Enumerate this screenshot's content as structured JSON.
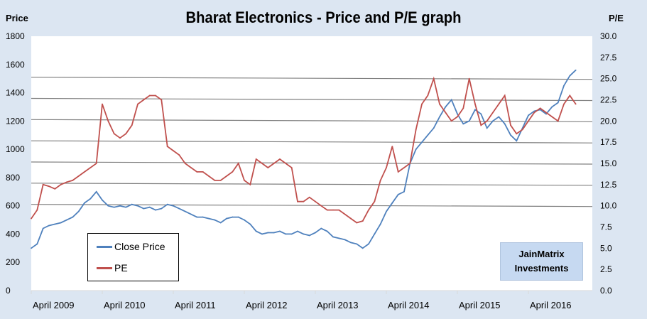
{
  "chart_data": {
    "type": "line",
    "title": "Bharat Electronics - Price and P/E graph",
    "ylabel": "Price",
    "y2label": "P/E",
    "ylim": [
      0,
      1800
    ],
    "y2lim": [
      0,
      30
    ],
    "yticks": [
      "0",
      "200",
      "400",
      "600",
      "800",
      "1000",
      "1200",
      "1400",
      "1600",
      "1800"
    ],
    "y2ticks": [
      "0.0",
      "2.5",
      "5.0",
      "7.5",
      "10.0",
      "12.5",
      "15.0",
      "17.5",
      "20.0",
      "22.5",
      "25.0",
      "27.5",
      "30.0"
    ],
    "xticks": [
      "April 2009",
      "April 2010",
      "April 2011",
      "April 2012",
      "April 2013",
      "April 2014",
      "April 2015",
      "April 2016"
    ],
    "grid": "horizontal lines at P/E 10.0-25.0",
    "legend": "bottom-left",
    "colors": {
      "Close Price": "#4f81bd",
      "PE": "#c0504d"
    },
    "start": "2009-04",
    "interval": "monthly",
    "series": [
      {
        "name": "Close Price",
        "axis": "left",
        "values": [
          300,
          330,
          440,
          460,
          470,
          480,
          500,
          520,
          560,
          620,
          650,
          700,
          640,
          600,
          590,
          600,
          590,
          610,
          600,
          580,
          590,
          570,
          580,
          610,
          600,
          580,
          560,
          540,
          520,
          520,
          510,
          500,
          480,
          510,
          520,
          520,
          500,
          470,
          420,
          400,
          410,
          410,
          420,
          400,
          400,
          420,
          400,
          390,
          410,
          440,
          420,
          380,
          370,
          360,
          340,
          330,
          300,
          330,
          400,
          470,
          560,
          620,
          680,
          700,
          900,
          1000,
          1050,
          1100,
          1150,
          1230,
          1300,
          1350,
          1250,
          1180,
          1200,
          1280,
          1250,
          1150,
          1200,
          1230,
          1180,
          1100,
          1060,
          1150,
          1240,
          1270,
          1280,
          1250,
          1300,
          1330,
          1450,
          1520,
          1560
        ]
      },
      {
        "name": "PE",
        "axis": "right",
        "values": [
          8.5,
          9.5,
          12.5,
          12.3,
          12,
          12.5,
          12.8,
          13,
          13.5,
          14,
          14.5,
          15,
          22,
          20,
          18.5,
          18,
          18.5,
          19.5,
          22,
          22.5,
          23,
          23,
          22.5,
          17,
          16.5,
          16,
          15,
          14.5,
          14,
          14,
          13.5,
          13,
          13,
          13.5,
          14,
          15,
          13,
          12.5,
          15.5,
          15,
          14.5,
          15,
          15.5,
          15,
          14.5,
          10.5,
          10.5,
          11,
          10.5,
          10,
          9.5,
          9.5,
          9.5,
          9,
          8.5,
          8,
          8.2,
          9.5,
          10.5,
          13,
          14.5,
          17,
          14,
          14.5,
          15,
          19,
          22,
          23,
          25,
          22,
          21,
          20,
          20.5,
          21.5,
          25,
          22,
          19.5,
          20,
          21,
          22,
          23,
          19.5,
          18.5,
          19,
          20,
          21,
          21.5,
          21,
          20.5,
          20,
          22,
          23,
          22
        ]
      }
    ]
  },
  "legend": {
    "items": [
      "Close Price",
      "PE"
    ]
  },
  "watermark": {
    "line1": "JainMatrix",
    "line2": "Investments"
  }
}
